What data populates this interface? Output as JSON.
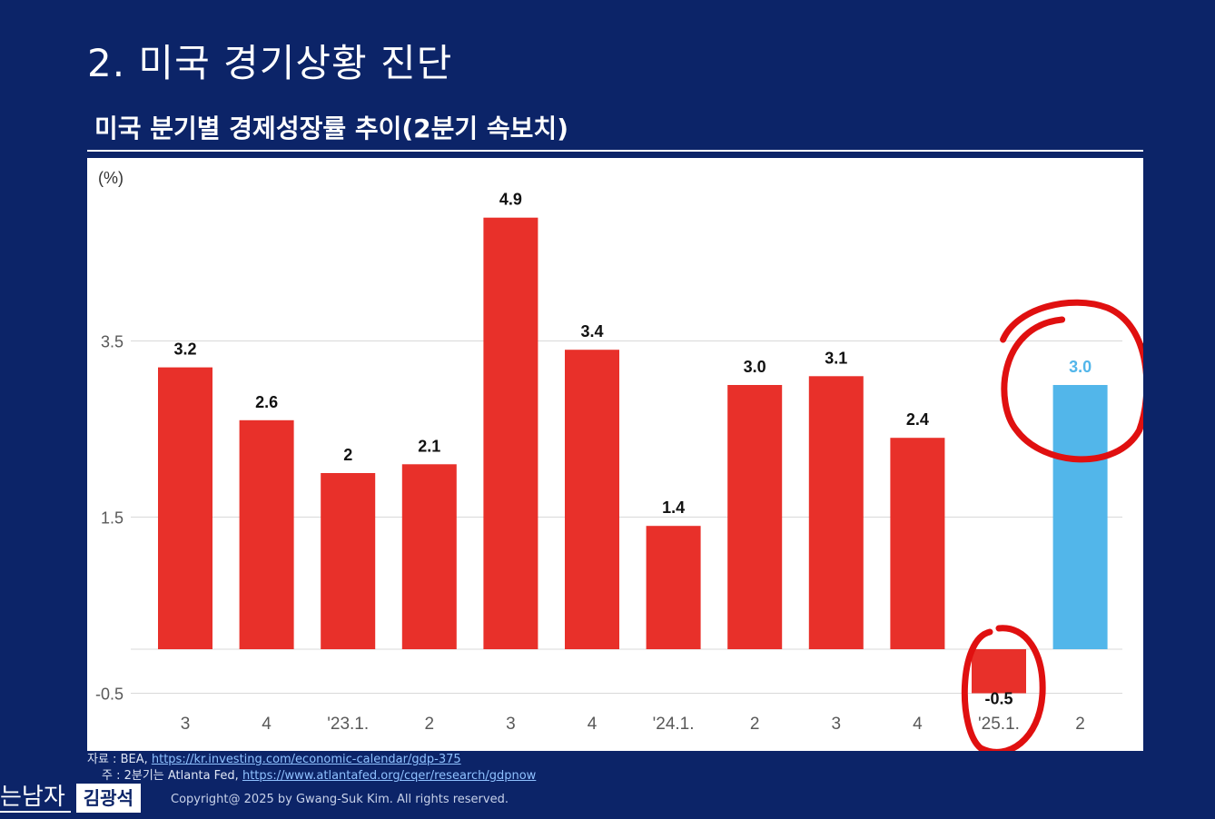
{
  "slide": {
    "title": "2. 미국 경기상황 진단",
    "chart_heading": "미국 분기별 경제성장률 추이(2분기 속보치)"
  },
  "chart_data": {
    "type": "bar",
    "ylabel": "(%)",
    "ylim": [
      -0.5,
      5.2
    ],
    "yticks": [
      -0.5,
      1.5,
      3.5
    ],
    "grid": true,
    "categories": [
      "3",
      "4",
      "'23.1.",
      "2",
      "3",
      "4",
      "'24.1.",
      "2",
      "3",
      "4",
      "'25.1.",
      "2"
    ],
    "values": [
      3.2,
      2.6,
      2.0,
      2.1,
      4.9,
      3.4,
      1.4,
      3.0,
      3.1,
      2.4,
      -0.5,
      3.0
    ],
    "data_labels": [
      "3.2",
      "2.6",
      "2",
      "2.1",
      "4.9",
      "3.4",
      "1.4",
      "3.0",
      "3.1",
      "2.4",
      "-0.5",
      "3.0"
    ],
    "highlight_index": 11,
    "colors": {
      "bar": "#e8302a",
      "highlight": "#52b6ea",
      "grid": "#d9d9d9",
      "label": "#111111",
      "axis_text": "#595959",
      "annotation": "#e01010"
    },
    "annotations": [
      "circle-around-last-bar",
      "circle-around-25.1-bar"
    ]
  },
  "footer": {
    "source_prefix": "자료 :  BEA, ",
    "source_url": "https://kr.investing.com/economic-calendar/gdp-375",
    "note_prefix": "주 : 2분기는 Atlanta Fed, ",
    "note_url": "https://www.atlantafed.org/cqer/research/gdpnow",
    "brand_left": "는남자",
    "brand_right": "김광석",
    "copyright": "Copyright@ 2025 by Gwang-Suk Kim. All rights reserved."
  }
}
